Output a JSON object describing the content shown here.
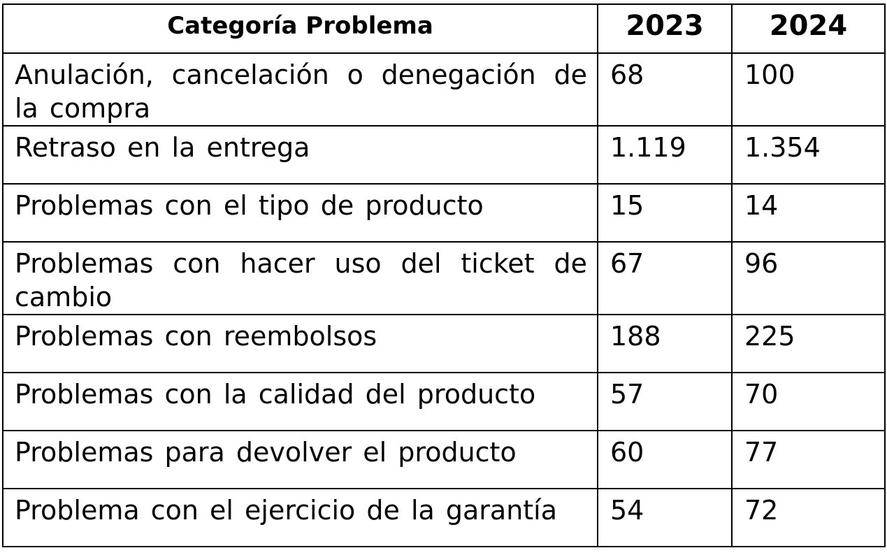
{
  "table": {
    "headers": {
      "category": "Categoría Problema",
      "year1": "2023",
      "year2": "2024"
    },
    "rows": [
      {
        "category": "Anulación, cancelación o denegación de la compra",
        "y2023": "68",
        "y2024": "100"
      },
      {
        "category": "Retraso en la entrega",
        "y2023": "1.119",
        "y2024": "1.354"
      },
      {
        "category": "Problemas con el tipo de producto",
        "y2023": "15",
        "y2024": "14"
      },
      {
        "category": "Problemas con hacer uso del ticket de cambio",
        "y2023": "67",
        "y2024": "96"
      },
      {
        "category": "Problemas con reembolsos",
        "y2023": "188",
        "y2024": "225"
      },
      {
        "category": "Problemas con la calidad del producto",
        "y2023": "57",
        "y2024": "70"
      },
      {
        "category": "Problemas para devolver el producto",
        "y2023": "60",
        "y2024": "77"
      },
      {
        "category": "Problema con el ejercicio de la garantía",
        "y2023": "54",
        "y2024": "72"
      }
    ]
  }
}
